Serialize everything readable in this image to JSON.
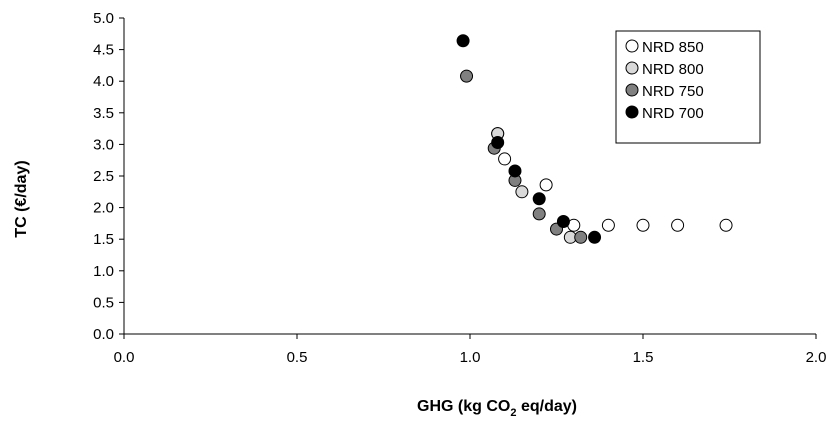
{
  "chart_data": {
    "type": "scatter",
    "title": "",
    "xlabel": {
      "prefix": "GHG (kg CO",
      "sub": "2",
      "suffix": " eq/day)"
    },
    "ylabel": "TC (€/day)",
    "xlim": [
      0,
      2.0
    ],
    "ylim": [
      0,
      5.0
    ],
    "xticks": [
      "0.0",
      "0.5",
      "1.0",
      "1.5",
      "2.0"
    ],
    "yticks": [
      "0.0",
      "0.5",
      "1.0",
      "1.5",
      "2.0",
      "2.5",
      "3.0",
      "3.5",
      "4.0",
      "4.5",
      "5.0"
    ],
    "grid": false,
    "legend_position": "top-right",
    "series": [
      {
        "name": "NRD 850",
        "color": "#ffffff",
        "x": [
          1.08,
          1.1,
          1.22,
          1.3,
          1.4,
          1.5,
          1.6,
          1.74
        ],
        "y": [
          3.17,
          2.77,
          2.36,
          1.72,
          1.72,
          1.72,
          1.72,
          1.72
        ]
      },
      {
        "name": "NRD 800",
        "color": "#d9d9d9",
        "x": [
          1.08,
          1.15,
          1.29
        ],
        "y": [
          3.17,
          2.25,
          1.53
        ]
      },
      {
        "name": "NRD 750",
        "color": "#808080",
        "x": [
          0.99,
          1.07,
          1.13,
          1.2,
          1.25,
          1.32
        ],
        "y": [
          4.08,
          2.94,
          2.43,
          1.9,
          1.66,
          1.53
        ]
      },
      {
        "name": "NRD 700",
        "color": "#000000",
        "x": [
          0.98,
          1.08,
          1.13,
          1.2,
          1.27,
          1.36
        ],
        "y": [
          4.64,
          3.03,
          2.58,
          2.14,
          1.78,
          1.53
        ]
      }
    ]
  }
}
